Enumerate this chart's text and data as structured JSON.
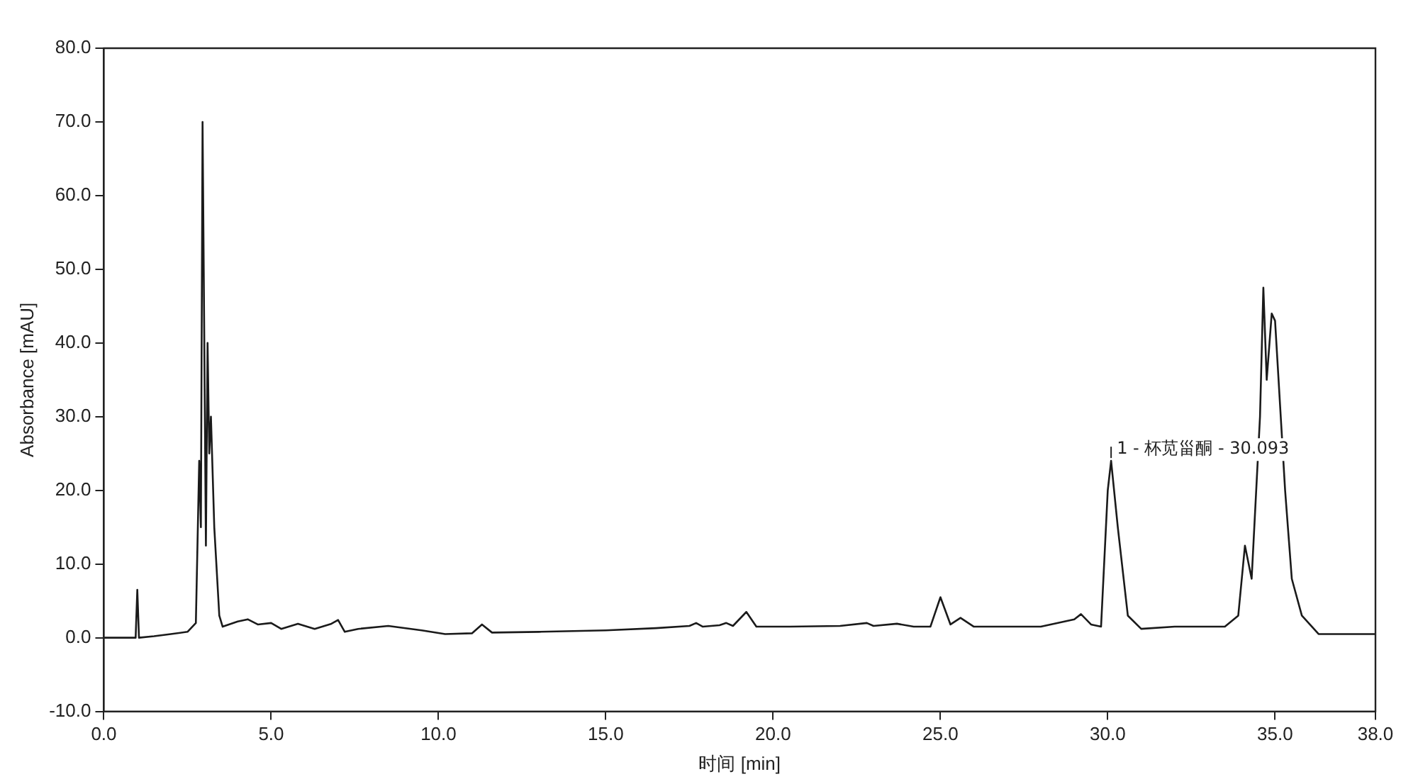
{
  "chart_data": {
    "type": "line",
    "xlabel": "时间 [min]",
    "ylabel": "Absorbance [mAU]",
    "xlim": [
      0,
      38
    ],
    "xticks": [
      {
        "value": 0,
        "label": "0.0"
      },
      {
        "value": 5,
        "label": "5.0"
      },
      {
        "value": 10,
        "label": "10.0"
      },
      {
        "value": 15,
        "label": "15.0"
      },
      {
        "value": 20,
        "label": "20.0"
      },
      {
        "value": 25,
        "label": "25.0"
      },
      {
        "value": 30,
        "label": "30.0"
      },
      {
        "value": 35,
        "label": "35.0"
      },
      {
        "value": 38,
        "label": "38.0"
      }
    ],
    "ylim": [
      -10,
      80
    ],
    "yticks": [
      {
        "value": -10,
        "label": "-10.0"
      },
      {
        "value": 0,
        "label": "0.0"
      },
      {
        "value": 10,
        "label": "10.0"
      },
      {
        "value": 20,
        "label": "20.0"
      },
      {
        "value": 30,
        "label": "30.0"
      },
      {
        "value": 40,
        "label": "40.0"
      },
      {
        "value": 50,
        "label": "50.0"
      },
      {
        "value": 60,
        "label": "60.0"
      },
      {
        "value": 70,
        "label": "70.0"
      },
      {
        "value": 80,
        "label": "80.0"
      }
    ],
    "grid": false,
    "legend": false,
    "marker": "none",
    "line_style": "solid",
    "annotations": [
      {
        "text": "1 - 杯苋甾酮 - 30.093",
        "x": 30.1,
        "y": 24
      }
    ],
    "series": [
      {
        "color": "#1a1a1a",
        "x": [
          0,
          0.95,
          1.0,
          1.05,
          1.5,
          2.0,
          2.5,
          2.75,
          2.85,
          2.9,
          2.95,
          3.05,
          3.1,
          3.15,
          3.2,
          3.3,
          3.45,
          3.55,
          4.0,
          4.3,
          4.6,
          5.0,
          5.3,
          5.8,
          6.3,
          6.8,
          7.0,
          7.2,
          7.6,
          8.5,
          9.5,
          10.2,
          11.0,
          11.3,
          11.6,
          13,
          15,
          16.5,
          17.5,
          17.7,
          17.9,
          18.4,
          18.6,
          18.8,
          19.2,
          19.5,
          20.5,
          22,
          22.8,
          23,
          23.7,
          24.2,
          24.7,
          25.0,
          25.3,
          25.6,
          26,
          28,
          29.0,
          29.2,
          29.5,
          29.8,
          30.0,
          30.1,
          30.3,
          30.6,
          31.0,
          32,
          33.5,
          33.9,
          34.1,
          34.3,
          34.55,
          34.65,
          34.75,
          34.9,
          35.0,
          35.3,
          35.5,
          35.8,
          36.3,
          38
        ],
        "values": [
          0,
          0,
          6.5,
          0,
          0.2,
          0.5,
          0.8,
          2,
          24,
          15,
          70,
          12.5,
          40,
          25,
          30,
          15,
          3,
          1.5,
          2.2,
          2.5,
          1.8,
          2.0,
          1.2,
          1.9,
          1.2,
          1.9,
          2.4,
          0.8,
          1.2,
          1.6,
          1.0,
          0.5,
          0.6,
          1.8,
          0.7,
          0.8,
          1.0,
          1.3,
          1.6,
          2.0,
          1.5,
          1.7,
          2.0,
          1.6,
          3.5,
          1.5,
          1.5,
          1.6,
          2.0,
          1.6,
          1.9,
          1.5,
          1.5,
          5.5,
          1.8,
          2.7,
          1.5,
          1.5,
          2.5,
          3.2,
          1.8,
          1.5,
          20,
          24,
          15,
          3,
          1.2,
          1.5,
          1.5,
          3,
          12.5,
          8,
          30,
          47.5,
          35,
          44,
          43,
          20,
          8,
          3,
          0.5,
          0.5
        ]
      }
    ]
  }
}
